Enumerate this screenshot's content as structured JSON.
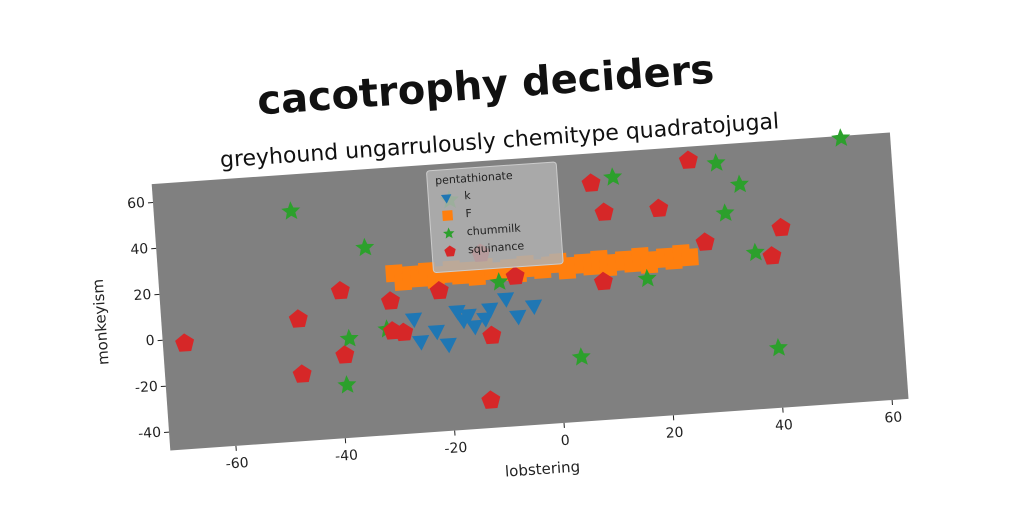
{
  "chart_data": {
    "type": "scatter",
    "title": "cacotrophy deciders",
    "subtitle": "greyhound ungarrulously chemitype quadratojugal",
    "x_label": "lobstering",
    "y_label": "monkeyism",
    "legend_title": "pentathionate",
    "legend_position": "upper center",
    "xlim": [
      -72,
      63
    ],
    "ylim": [
      -48,
      68
    ],
    "xticks": [
      -60,
      -40,
      -20,
      0,
      20,
      40,
      60
    ],
    "yticks": [
      -40,
      -20,
      0,
      20,
      40,
      60
    ],
    "series": [
      {
        "name": "k",
        "color": "#1f77b4",
        "marker": "triangle_down",
        "x": [
          -26,
          -25,
          -22,
          -20,
          -18,
          -17,
          -16,
          -15,
          -13,
          -12,
          -9,
          -7,
          -4
        ],
        "y": [
          2,
          -8,
          -4,
          -10,
          4,
          0,
          2,
          -3,
          0,
          4,
          8,
          0,
          4
        ]
      },
      {
        "name": "F",
        "color": "#ff7f0e",
        "marker": "square",
        "x": [
          -29,
          -27.5,
          -26,
          -24.5,
          -23,
          -21.5,
          -20,
          -18.5,
          -17,
          -15.5,
          -14,
          -12.5,
          -11,
          -9.5,
          -8,
          -6.5,
          -5,
          -3.5,
          -2,
          -0.5,
          1,
          2.5,
          4,
          5.5,
          7,
          8.5,
          10,
          11.5,
          13,
          14.5,
          16,
          17.5,
          19,
          20.5,
          22,
          23.5,
          25
        ],
        "y": [
          22,
          18,
          21,
          19,
          22,
          18,
          20,
          22,
          19,
          21,
          18,
          22,
          20,
          19,
          21,
          18,
          22,
          20,
          19,
          21,
          22,
          18,
          20,
          21,
          19,
          22,
          18,
          20,
          21,
          19,
          22,
          18,
          20,
          21,
          19,
          22,
          20
        ]
      },
      {
        "name": "chummilk",
        "color": "#2ca02c",
        "marker": "star",
        "x": [
          54,
          31,
          12,
          35,
          -47,
          -18,
          10,
          -34,
          32,
          -10,
          17,
          37,
          -38,
          -31,
          4,
          40,
          -39
        ],
        "y": [
          67,
          60,
          57,
          50,
          52,
          52,
          42,
          34,
          38,
          15,
          12,
          20,
          -5,
          -2,
          -20,
          -22,
          -25
        ]
      },
      {
        "name": "squinance",
        "color": "#d62728",
        "marker": "pentagon",
        "x": [
          -68,
          -47,
          -39,
          -30,
          -30,
          -28,
          -39,
          -47,
          -21,
          -13,
          -7,
          -12,
          -13,
          9,
          8,
          10,
          20,
          26,
          28,
          40,
          42
        ],
        "y": [
          -2,
          5,
          16,
          10,
          -3,
          -4,
          -12,
          -19,
          13,
          28,
          17,
          -8,
          -36,
          12,
          55,
          42,
          42,
          62,
          26,
          18,
          30
        ]
      }
    ]
  }
}
